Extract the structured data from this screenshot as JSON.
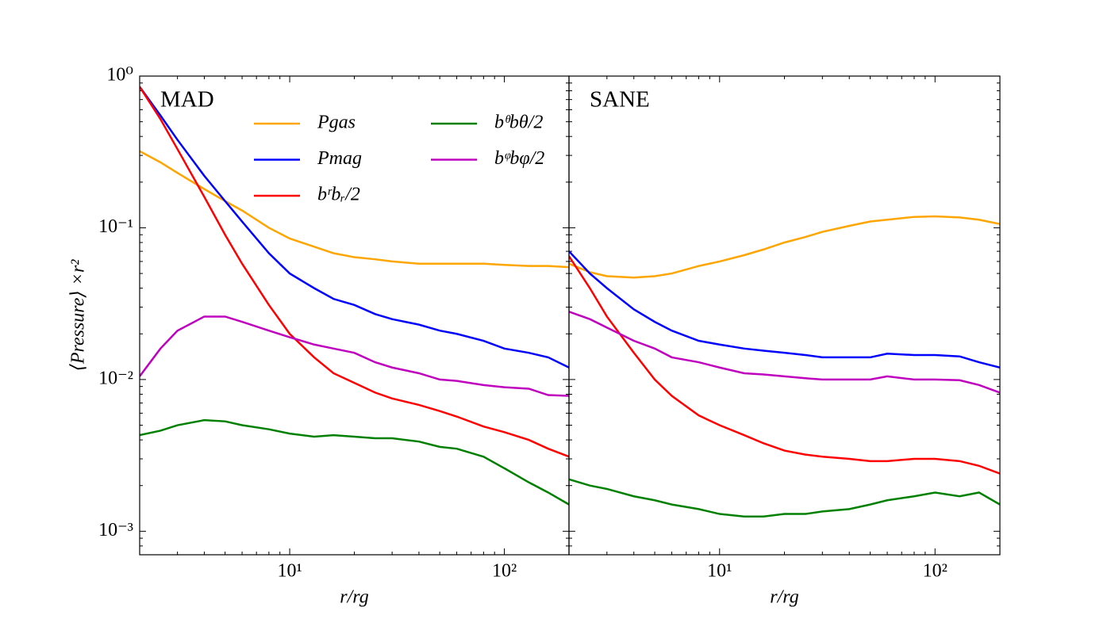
{
  "chart_data": [
    {
      "type": "line",
      "panel_label": "MAD",
      "x_label": "r/rg",
      "y_label": "⟨Pressure⟩ ×r²",
      "xscale": "log",
      "yscale": "log",
      "xlim": [
        2,
        200
      ],
      "ylim": [
        0.0007,
        1
      ],
      "xticks": [
        {
          "value": 10,
          "label": "10¹"
        },
        {
          "value": 100,
          "label": "10²"
        }
      ],
      "yticks": [
        {
          "value": 1,
          "label": "10⁰"
        },
        {
          "value": 0.1,
          "label": "10⁻¹"
        },
        {
          "value": 0.01,
          "label": "10⁻²"
        },
        {
          "value": 0.001,
          "label": "10⁻³"
        }
      ],
      "x": [
        2,
        2.5,
        3,
        4,
        5,
        6,
        8,
        10,
        13,
        16,
        20,
        25,
        30,
        40,
        50,
        60,
        80,
        100,
        130,
        160,
        200
      ],
      "series": [
        {
          "name": "Pgas",
          "color": "#ffa500",
          "values": [
            0.32,
            0.27,
            0.23,
            0.18,
            0.15,
            0.13,
            0.1,
            0.085,
            0.075,
            0.068,
            0.064,
            0.062,
            0.06,
            0.058,
            0.058,
            0.058,
            0.058,
            0.057,
            0.056,
            0.056,
            0.055
          ]
        },
        {
          "name": "Pmag",
          "color": "#0000ff",
          "values": [
            0.85,
            0.55,
            0.38,
            0.22,
            0.15,
            0.11,
            0.068,
            0.05,
            0.04,
            0.034,
            0.031,
            0.027,
            0.025,
            0.023,
            0.021,
            0.02,
            0.018,
            0.016,
            0.015,
            0.014,
            0.012
          ]
        },
        {
          "name": "bʳbᵣ/2",
          "color": "#ff0000",
          "values": [
            0.85,
            0.52,
            0.33,
            0.16,
            0.09,
            0.058,
            0.031,
            0.02,
            0.014,
            0.011,
            0.0095,
            0.0082,
            0.0075,
            0.0068,
            0.0062,
            0.0057,
            0.0049,
            0.0045,
            0.004,
            0.0035,
            0.0031
          ]
        },
        {
          "name": "bᶿbθ/2",
          "color": "#008000",
          "values": [
            0.0043,
            0.0046,
            0.005,
            0.0054,
            0.0053,
            0.005,
            0.0047,
            0.0044,
            0.0042,
            0.0043,
            0.0042,
            0.0041,
            0.0041,
            0.0039,
            0.0036,
            0.0035,
            0.0031,
            0.0026,
            0.0021,
            0.0018,
            0.0015
          ]
        },
        {
          "name": "bᵠbφ/2",
          "color": "#bf00bf",
          "values": [
            0.0105,
            0.016,
            0.021,
            0.026,
            0.026,
            0.024,
            0.021,
            0.019,
            0.017,
            0.016,
            0.015,
            0.013,
            0.012,
            0.011,
            0.01,
            0.0098,
            0.0092,
            0.0089,
            0.0087,
            0.0079,
            0.0078
          ]
        }
      ]
    },
    {
      "type": "line",
      "panel_label": "SANE",
      "x_label": "r/rg",
      "xscale": "log",
      "yscale": "log",
      "xlim": [
        2,
        200
      ],
      "ylim": [
        0.0007,
        1
      ],
      "xticks": [
        {
          "value": 10,
          "label": "10¹"
        },
        {
          "value": 100,
          "label": "10²"
        }
      ],
      "x": [
        2,
        2.5,
        3,
        4,
        5,
        6,
        8,
        10,
        13,
        16,
        20,
        25,
        30,
        40,
        50,
        60,
        80,
        100,
        130,
        160,
        200
      ],
      "series": [
        {
          "color": "#ffa500",
          "values": [
            0.058,
            0.051,
            0.048,
            0.047,
            0.048,
            0.05,
            0.056,
            0.06,
            0.066,
            0.072,
            0.08,
            0.087,
            0.094,
            0.103,
            0.11,
            0.113,
            0.118,
            0.119,
            0.117,
            0.113,
            0.106
          ]
        },
        {
          "color": "#0000ff",
          "values": [
            0.07,
            0.05,
            0.04,
            0.029,
            0.024,
            0.021,
            0.018,
            0.017,
            0.016,
            0.0155,
            0.015,
            0.0145,
            0.014,
            0.014,
            0.014,
            0.0148,
            0.0145,
            0.0145,
            0.0142,
            0.013,
            0.012
          ]
        },
        {
          "color": "#ff0000",
          "values": [
            0.065,
            0.04,
            0.026,
            0.015,
            0.01,
            0.0078,
            0.0058,
            0.005,
            0.0043,
            0.0038,
            0.0034,
            0.0032,
            0.0031,
            0.003,
            0.0029,
            0.0029,
            0.003,
            0.003,
            0.0029,
            0.0027,
            0.0024
          ]
        },
        {
          "color": "#008000",
          "values": [
            0.0022,
            0.002,
            0.0019,
            0.0017,
            0.0016,
            0.0015,
            0.0014,
            0.0013,
            0.00125,
            0.00125,
            0.0013,
            0.0013,
            0.00135,
            0.0014,
            0.0015,
            0.0016,
            0.0017,
            0.0018,
            0.0017,
            0.0018,
            0.0015
          ]
        },
        {
          "color": "#bf00bf",
          "values": [
            0.028,
            0.025,
            0.022,
            0.018,
            0.016,
            0.014,
            0.013,
            0.012,
            0.011,
            0.0108,
            0.0105,
            0.0102,
            0.01,
            0.01,
            0.01,
            0.0105,
            0.01,
            0.01,
            0.0099,
            0.0092,
            0.0082
          ]
        }
      ]
    }
  ]
}
